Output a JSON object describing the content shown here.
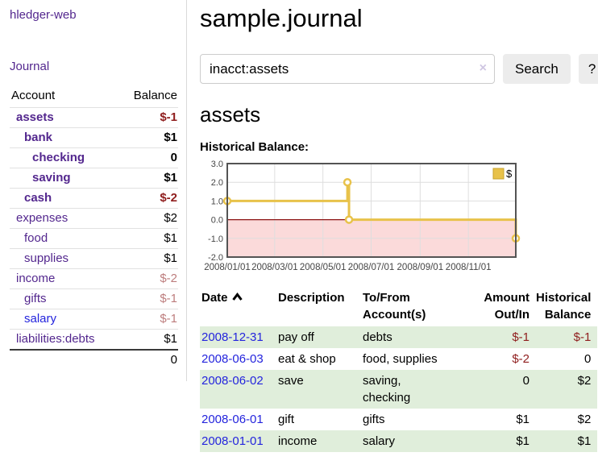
{
  "sidebar": {
    "brand": "hledger-web",
    "journal_link": "Journal",
    "header": {
      "account": "Account",
      "balance": "Balance"
    },
    "accounts": [
      {
        "name": "assets",
        "level": 1,
        "emph": true,
        "balance": "$-1",
        "neg": "strong",
        "visited": true
      },
      {
        "name": "bank",
        "level": 2,
        "emph": true,
        "balance": "$1",
        "neg": null,
        "visited": true
      },
      {
        "name": "checking",
        "level": 3,
        "emph": true,
        "balance": "0",
        "neg": null,
        "visited": true
      },
      {
        "name": "saving",
        "level": 3,
        "emph": true,
        "balance": "$1",
        "neg": null,
        "visited": true
      },
      {
        "name": "cash",
        "level": 2,
        "emph": true,
        "balance": "$-2",
        "neg": "strong",
        "visited": true
      },
      {
        "name": "expenses",
        "level": 1,
        "emph": false,
        "balance": "$2",
        "neg": null,
        "visited": true
      },
      {
        "name": "food",
        "level": 2,
        "emph": false,
        "balance": "$1",
        "neg": null,
        "visited": true
      },
      {
        "name": "supplies",
        "level": 2,
        "emph": false,
        "balance": "$1",
        "neg": null,
        "visited": true
      },
      {
        "name": "income",
        "level": 1,
        "emph": false,
        "balance": "$-2",
        "neg": "soft",
        "visited": true
      },
      {
        "name": "gifts",
        "level": 2,
        "emph": false,
        "balance": "$-1",
        "neg": "soft",
        "visited": true
      },
      {
        "name": "salary",
        "level": 2,
        "emph": false,
        "balance": "$-1",
        "neg": "soft",
        "visited": false
      },
      {
        "name": "liabilities:debts",
        "level": 1,
        "emph": false,
        "balance": "$1",
        "neg": null,
        "visited": true
      }
    ],
    "total": "0"
  },
  "main": {
    "title": "sample.journal",
    "search": {
      "value": "inacct:assets",
      "clear_icon": "×",
      "search_label": "Search",
      "help_label": "?"
    },
    "account_heading": "assets",
    "section_label": "Historical Balance:"
  },
  "chart_data": {
    "type": "line",
    "step": true,
    "title": "Historical Balance",
    "x_start": "2008-01-01",
    "xlim_days": [
      0,
      365
    ],
    "ylim": [
      -2,
      3
    ],
    "y_ticks": [
      "3.0",
      "2.0",
      "1.0",
      "0.0",
      "-1.0",
      "-2.0"
    ],
    "x_ticks": [
      "2008/01/01",
      "2008/03/01",
      "2008/05/01",
      "2008/07/01",
      "2008/09/01",
      "2008/11/01"
    ],
    "series": [
      {
        "name": "$",
        "color": "#e8c24a",
        "points": [
          [
            "2008-01-01",
            1
          ],
          [
            "2008-06-01",
            2
          ],
          [
            "2008-06-03",
            0
          ],
          [
            "2008-12-31",
            -1
          ]
        ]
      }
    ],
    "legend": {
      "label": "$",
      "position": "top-right"
    },
    "grid": true,
    "gridline_color": "#dedede",
    "border_color": "#545454",
    "negative_region_color": "#fbdada",
    "zero_line_color": "#8b1212",
    "tick_label_color": "#454545"
  },
  "register": {
    "columns": [
      {
        "label": "Date",
        "align": "left",
        "sorted": true
      },
      {
        "label": "Description",
        "align": "left",
        "sorted": false
      },
      {
        "label": "To/From\nAccount(s)",
        "align": "left",
        "sorted": false
      },
      {
        "label": "Amount\nOut/In",
        "align": "right",
        "sorted": false
      },
      {
        "label": "Historical\nBalance",
        "align": "right",
        "sorted": false
      }
    ],
    "rows": [
      {
        "date": "2008-12-31",
        "description": "pay off",
        "to_from": "debts",
        "amount": "$-1",
        "amount_neg": true,
        "balance": "$-1",
        "balance_neg": true,
        "shaded": true
      },
      {
        "date": "2008-06-03",
        "description": "eat & shop",
        "to_from": "food, supplies",
        "amount": "$-2",
        "amount_neg": true,
        "balance": "0",
        "balance_neg": false,
        "shaded": false
      },
      {
        "date": "2008-06-02",
        "description": "save",
        "to_from": "saving,\nchecking",
        "amount": "0",
        "amount_neg": false,
        "balance": "$2",
        "balance_neg": false,
        "shaded": true
      },
      {
        "date": "2008-06-01",
        "description": "gift",
        "to_from": "gifts",
        "amount": "$1",
        "amount_neg": false,
        "balance": "$2",
        "balance_neg": false,
        "shaded": false
      },
      {
        "date": "2008-01-01",
        "description": "income",
        "to_from": "salary",
        "amount": "$1",
        "amount_neg": false,
        "balance": "$1",
        "balance_neg": false,
        "shaded": true
      }
    ]
  }
}
